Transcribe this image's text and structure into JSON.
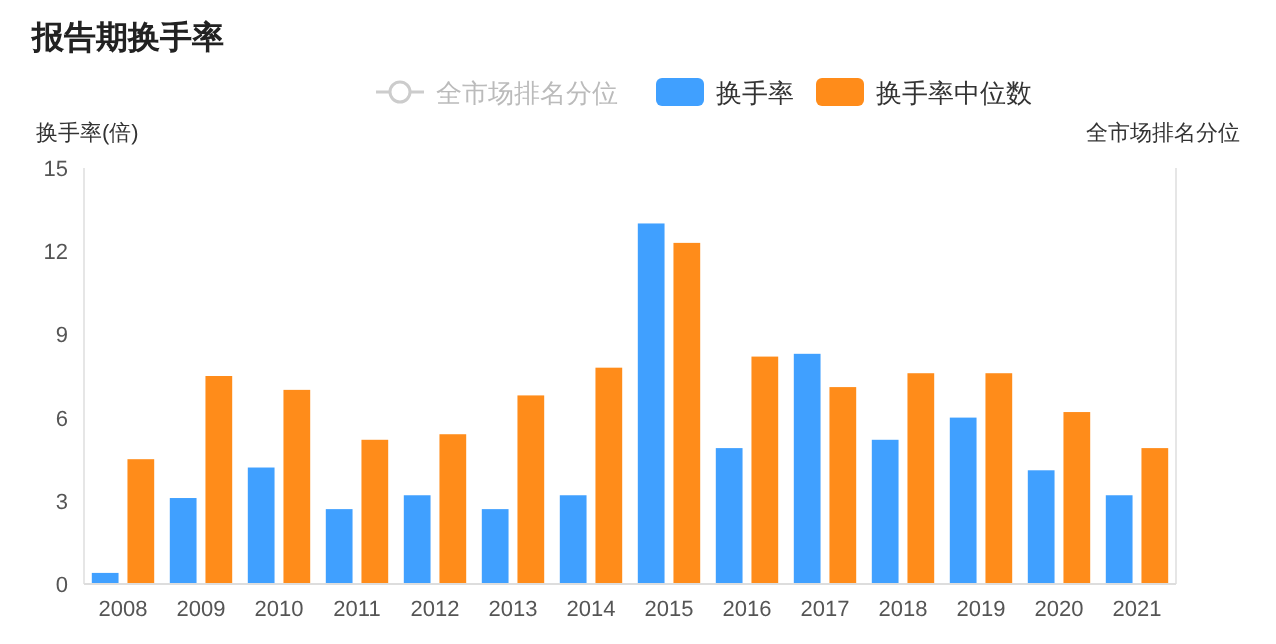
{
  "chart_data": {
    "type": "bar",
    "title": "报告期换手率",
    "ylabel": "换手率(倍)",
    "y2label": "全市场排名分位",
    "categories": [
      "2008",
      "2009",
      "2010",
      "2011",
      "2012",
      "2013",
      "2014",
      "2015",
      "2016",
      "2017",
      "2018",
      "2019",
      "2020",
      "2021"
    ],
    "series": [
      {
        "name": "全市场排名分位",
        "type": "line",
        "marker": "circle",
        "color": "#cccccc",
        "values": [
          null,
          null,
          null,
          null,
          null,
          null,
          null,
          null,
          null,
          null,
          null,
          null,
          null,
          null
        ]
      },
      {
        "name": "换手率",
        "color": "#40a0ff",
        "values": [
          0.4,
          3.1,
          4.2,
          2.7,
          3.2,
          2.7,
          3.2,
          13.0,
          4.9,
          8.3,
          5.2,
          6.0,
          4.1,
          3.2
        ]
      },
      {
        "name": "换手率中位数",
        "color": "#ff8c1a",
        "values": [
          4.5,
          7.5,
          7.0,
          5.2,
          5.4,
          6.8,
          7.8,
          12.3,
          8.2,
          7.1,
          7.6,
          7.6,
          6.2,
          4.9
        ]
      }
    ],
    "ylim": [
      0,
      15
    ],
    "yticks": [
      0,
      3,
      6,
      9,
      12,
      15
    ],
    "grid": false,
    "legend": "top"
  }
}
